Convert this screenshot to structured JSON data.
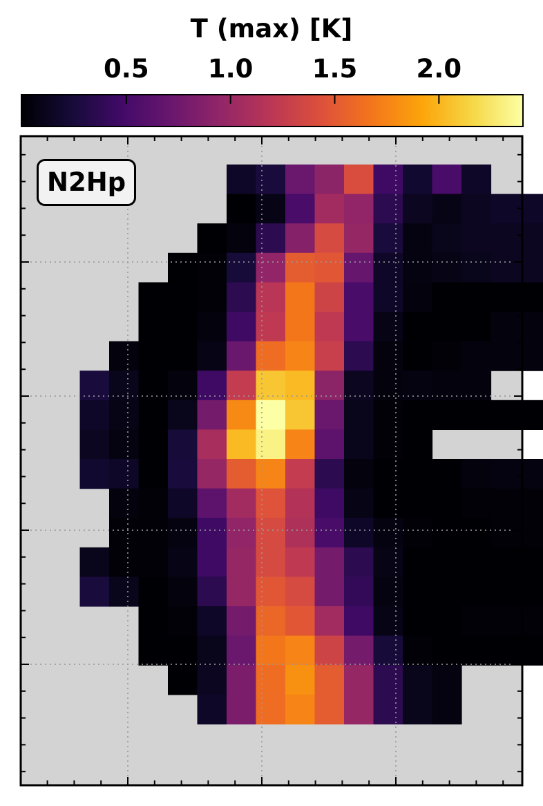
{
  "chart_data": {
    "type": "heatmap",
    "title": "",
    "colorbar": {
      "label": "T (max) [K]",
      "ticks": [
        0.5,
        1.0,
        1.5,
        2.0
      ],
      "tick_labels": [
        "0.5",
        "1.0",
        "1.5",
        "2.0"
      ],
      "range": [
        0.0,
        2.4
      ],
      "colormap": "inferno"
    },
    "annotation": "N2Hp",
    "grid": true,
    "nodata_color": "#d3d3d3",
    "cols": 17,
    "rows": 22,
    "values": [
      [
        null,
        null,
        null,
        null,
        null,
        null,
        0.16,
        0.26,
        0.72,
        0.92,
        1.4,
        0.46,
        0.2,
        0.52,
        0.16,
        null,
        null
      ],
      [
        null,
        null,
        null,
        null,
        null,
        null,
        0.0,
        0.08,
        0.52,
        1.05,
        0.95,
        0.36,
        0.13,
        0.08,
        0.13,
        0.16,
        0.16
      ],
      [
        null,
        null,
        null,
        null,
        null,
        0.0,
        0.04,
        0.36,
        0.88,
        1.38,
        0.98,
        0.26,
        0.06,
        0.1,
        0.13,
        0.13,
        0.13
      ],
      [
        null,
        null,
        null,
        null,
        0.0,
        0.02,
        0.24,
        0.95,
        1.52,
        1.48,
        0.7,
        0.16,
        0.06,
        0.08,
        0.1,
        0.13,
        0.13
      ],
      [
        null,
        null,
        null,
        0.0,
        0.0,
        0.02,
        0.36,
        1.18,
        1.68,
        1.32,
        0.52,
        0.16,
        0.04,
        0.0,
        0.0,
        0.0,
        0.0
      ],
      [
        null,
        null,
        null,
        0.0,
        0.0,
        0.04,
        0.46,
        1.22,
        1.68,
        1.22,
        0.52,
        0.08,
        0.0,
        0.0,
        0.0,
        0.04,
        0.04
      ],
      [
        null,
        null,
        0.04,
        0.0,
        0.0,
        0.08,
        0.72,
        1.62,
        1.75,
        1.28,
        0.36,
        0.04,
        0.0,
        0.02,
        0.04,
        0.04,
        0.04
      ],
      [
        null,
        0.26,
        0.1,
        0.0,
        0.04,
        0.46,
        1.25,
        2.08,
        2.02,
        0.92,
        0.13,
        0.04,
        0.06,
        0.04,
        0.04,
        null,
        null
      ],
      [
        null,
        0.16,
        0.08,
        0.0,
        0.1,
        0.78,
        1.78,
        2.44,
        2.08,
        0.72,
        0.1,
        0.02,
        0.0,
        0.0,
        0.0,
        0.0,
        0.0
      ],
      [
        null,
        0.13,
        0.06,
        0.0,
        0.24,
        1.08,
        2.02,
        2.32,
        1.75,
        0.64,
        0.1,
        0.02,
        0.0,
        null,
        null,
        null,
        null
      ],
      [
        null,
        0.2,
        0.16,
        0.0,
        0.26,
        0.98,
        1.52,
        1.75,
        1.25,
        0.36,
        0.04,
        0.0,
        0.0,
        0.0,
        0.04,
        0.06,
        0.06
      ],
      [
        null,
        null,
        0.04,
        0.02,
        0.16,
        0.64,
        1.05,
        1.45,
        1.15,
        0.46,
        0.08,
        0.0,
        0.0,
        0.0,
        0.02,
        0.02,
        0.02
      ],
      [
        null,
        null,
        0.02,
        0.02,
        0.06,
        0.46,
        0.95,
        1.38,
        1.12,
        0.52,
        0.16,
        0.06,
        0.02,
        0.0,
        0.0,
        0.02,
        0.02
      ],
      [
        null,
        0.1,
        0.02,
        0.02,
        0.08,
        0.46,
        0.98,
        1.38,
        1.22,
        0.78,
        0.36,
        0.08,
        0.0,
        0.0,
        0.0,
        0.0,
        0.0
      ],
      [
        null,
        0.26,
        0.1,
        0.0,
        0.04,
        0.36,
        0.98,
        1.48,
        1.38,
        0.78,
        0.4,
        0.06,
        0.0,
        0.0,
        0.0,
        0.0,
        0.0
      ],
      [
        null,
        null,
        null,
        0.0,
        0.02,
        0.16,
        0.78,
        1.58,
        1.48,
        1.05,
        0.46,
        0.08,
        0.0,
        0.0,
        0.02,
        0.02,
        0.02
      ],
      [
        null,
        null,
        null,
        0.0,
        0.0,
        0.1,
        0.72,
        1.68,
        1.75,
        1.32,
        0.78,
        0.24,
        0.02,
        0.0,
        0.0,
        0.0,
        0.0
      ],
      [
        null,
        null,
        null,
        null,
        0.0,
        0.13,
        0.82,
        1.62,
        1.82,
        1.52,
        0.98,
        0.36,
        0.1,
        0.06,
        null,
        null,
        null
      ],
      [
        null,
        null,
        null,
        null,
        null,
        0.16,
        0.82,
        1.62,
        1.75,
        1.52,
        0.98,
        0.36,
        0.1,
        0.06,
        null,
        null,
        null
      ],
      [
        null,
        null,
        null,
        null,
        null,
        null,
        null,
        null,
        null,
        null,
        null,
        null,
        null,
        null,
        null,
        null,
        null
      ],
      [
        null,
        null,
        null,
        null,
        null,
        null,
        null,
        null,
        null,
        null,
        null,
        null,
        null,
        null,
        null,
        null,
        null
      ],
      [
        null,
        null,
        null,
        null,
        null,
        null,
        null,
        null,
        null,
        null,
        null,
        null,
        null,
        null,
        null,
        null,
        null
      ]
    ]
  }
}
